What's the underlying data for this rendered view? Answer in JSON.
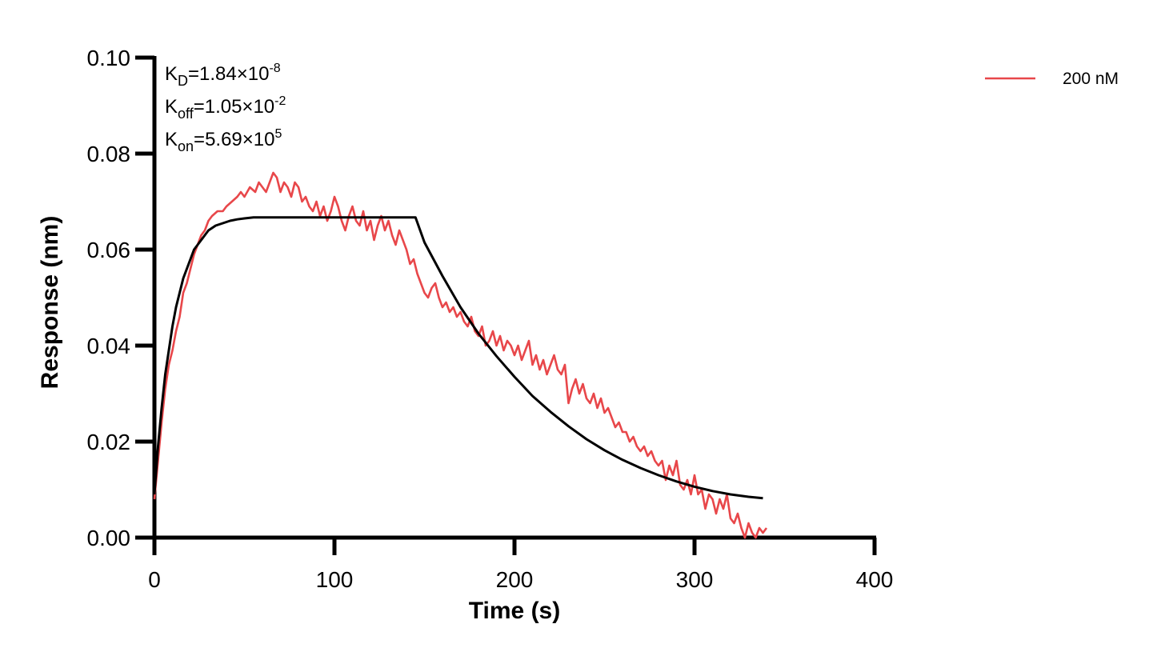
{
  "chart_data": {
    "type": "line",
    "title": "",
    "xlabel": "Time (s)",
    "ylabel": "Response (nm)",
    "xlim": [
      0,
      400
    ],
    "ylim": [
      0,
      0.1
    ],
    "x_ticks": [
      0,
      100,
      200,
      300,
      400
    ],
    "x_tick_labels": [
      "0",
      "100",
      "200",
      "300",
      "400"
    ],
    "y_ticks": [
      0,
      0.02,
      0.04,
      0.06,
      0.08,
      0.1
    ],
    "y_tick_labels": [
      "0.00",
      "0.02",
      "0.04",
      "0.06",
      "0.08",
      "0.10"
    ],
    "grid": false,
    "legend_position": "top-right",
    "annotations": [
      {
        "base": "K",
        "sub": "D",
        "mid": "=1.84×10",
        "sup": "-8"
      },
      {
        "base": "K",
        "sub": "off",
        "mid": "=1.05×10",
        "sup": "-2"
      },
      {
        "base": "K",
        "sub": "on",
        "mid": "=5.69×10",
        "sup": "5"
      }
    ],
    "series": [
      {
        "name": "200 nM",
        "color": "#e8474a",
        "x": [
          0,
          2,
          4,
          6,
          8,
          10,
          12,
          14,
          16,
          18,
          20,
          22,
          24,
          26,
          28,
          30,
          32,
          35,
          38,
          40,
          43,
          46,
          48,
          50,
          53,
          56,
          58,
          60,
          62,
          64,
          66,
          68,
          70,
          72,
          74,
          76,
          78,
          80,
          82,
          84,
          86,
          88,
          90,
          92,
          94,
          96,
          98,
          100,
          102,
          104,
          106,
          108,
          110,
          112,
          114,
          116,
          118,
          120,
          122,
          124,
          126,
          128,
          130,
          132,
          134,
          136,
          138,
          140,
          142,
          144,
          146,
          148,
          150,
          152,
          154,
          156,
          158,
          160,
          162,
          164,
          166,
          168,
          170,
          172,
          174,
          176,
          178,
          180,
          182,
          184,
          186,
          188,
          190,
          192,
          194,
          196,
          198,
          200,
          202,
          204,
          206,
          208,
          210,
          212,
          214,
          216,
          218,
          220,
          222,
          224,
          226,
          228,
          230,
          232,
          234,
          236,
          238,
          240,
          242,
          244,
          246,
          248,
          250,
          252,
          254,
          256,
          258,
          260,
          262,
          264,
          266,
          268,
          270,
          272,
          274,
          276,
          278,
          280,
          282,
          284,
          286,
          288,
          290,
          292,
          294,
          296,
          298,
          300,
          302,
          304,
          306,
          308,
          310,
          312,
          314,
          316,
          318,
          320,
          322,
          324,
          326,
          328,
          330,
          332,
          334,
          336,
          338,
          340
        ],
        "y": [
          0.008,
          0.016,
          0.024,
          0.031,
          0.036,
          0.039,
          0.043,
          0.046,
          0.051,
          0.053,
          0.056,
          0.059,
          0.061,
          0.063,
          0.064,
          0.066,
          0.067,
          0.068,
          0.068,
          0.069,
          0.07,
          0.071,
          0.072,
          0.071,
          0.073,
          0.072,
          0.074,
          0.073,
          0.072,
          0.074,
          0.076,
          0.075,
          0.072,
          0.074,
          0.073,
          0.071,
          0.074,
          0.073,
          0.07,
          0.071,
          0.069,
          0.068,
          0.07,
          0.067,
          0.069,
          0.066,
          0.068,
          0.071,
          0.069,
          0.066,
          0.064,
          0.067,
          0.069,
          0.066,
          0.065,
          0.068,
          0.064,
          0.066,
          0.062,
          0.065,
          0.067,
          0.064,
          0.066,
          0.063,
          0.061,
          0.064,
          0.062,
          0.06,
          0.057,
          0.058,
          0.055,
          0.053,
          0.051,
          0.05,
          0.052,
          0.053,
          0.05,
          0.048,
          0.049,
          0.047,
          0.048,
          0.046,
          0.047,
          0.045,
          0.044,
          0.046,
          0.043,
          0.042,
          0.044,
          0.04,
          0.041,
          0.043,
          0.04,
          0.042,
          0.039,
          0.041,
          0.04,
          0.038,
          0.04,
          0.037,
          0.039,
          0.041,
          0.036,
          0.038,
          0.035,
          0.037,
          0.034,
          0.036,
          0.038,
          0.035,
          0.034,
          0.036,
          0.028,
          0.031,
          0.033,
          0.03,
          0.032,
          0.029,
          0.028,
          0.03,
          0.027,
          0.029,
          0.026,
          0.027,
          0.025,
          0.023,
          0.024,
          0.022,
          0.022,
          0.02,
          0.021,
          0.019,
          0.018,
          0.019,
          0.017,
          0.018,
          0.016,
          0.015,
          0.016,
          0.012,
          0.015,
          0.013,
          0.016,
          0.011,
          0.01,
          0.012,
          0.009,
          0.013,
          0.009,
          0.01,
          0.006,
          0.009,
          0.008,
          0.005,
          0.008,
          0.006,
          0.009,
          0.004,
          0.003,
          0.005,
          0.002,
          0.0,
          0.003,
          0.001,
          0.0,
          0.002,
          0.001,
          0.002
        ]
      },
      {
        "color": "#000000",
        "x": [
          0,
          2,
          4,
          6,
          8,
          10,
          12,
          14,
          16,
          18,
          20,
          22,
          24,
          26,
          28,
          30,
          34,
          38,
          42,
          46,
          50,
          55,
          60,
          70,
          80,
          90,
          100,
          110,
          120,
          130,
          140,
          145,
          150,
          160,
          170,
          180,
          190,
          200,
          210,
          220,
          230,
          240,
          250,
          260,
          270,
          280,
          290,
          300,
          310,
          320,
          330,
          338
        ],
        "y": [
          0.009,
          0.019,
          0.027,
          0.034,
          0.039,
          0.044,
          0.048,
          0.051,
          0.054,
          0.056,
          0.058,
          0.06,
          0.061,
          0.062,
          0.063,
          0.064,
          0.065,
          0.0655,
          0.066,
          0.0663,
          0.0665,
          0.0667,
          0.0667,
          0.0667,
          0.0667,
          0.0667,
          0.0667,
          0.0667,
          0.0667,
          0.0667,
          0.0667,
          0.0667,
          0.0615,
          0.0545,
          0.048,
          0.0425,
          0.0378,
          0.0335,
          0.0295,
          0.0262,
          0.0232,
          0.0205,
          0.0182,
          0.0162,
          0.0145,
          0.013,
          0.0117,
          0.0106,
          0.0097,
          0.009,
          0.0085,
          0.0082
        ]
      }
    ]
  }
}
